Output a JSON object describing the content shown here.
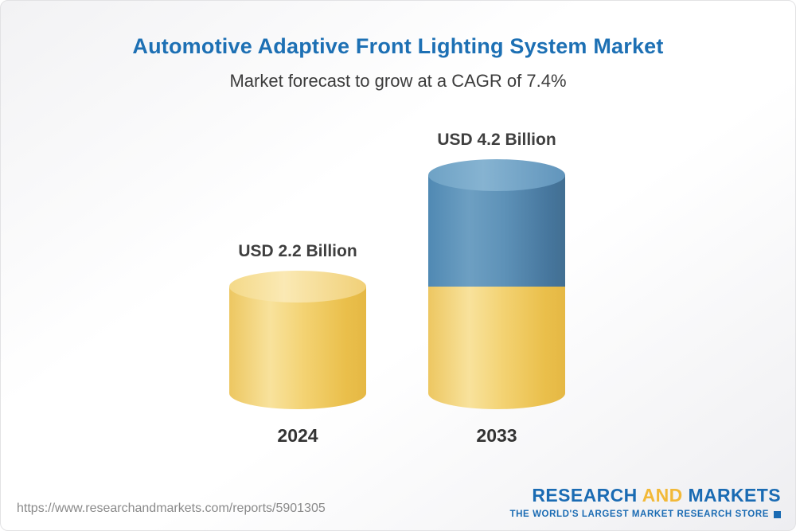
{
  "chart_data": {
    "type": "bar",
    "variant": "3d-cylinder",
    "title": "Automotive Adaptive Front Lighting System Market",
    "subtitle": "Market forecast to grow at a CAGR of 7.4%",
    "cagr": "7.4%",
    "unit": "USD Billion",
    "categories": [
      "2024",
      "2033"
    ],
    "values": [
      2.2,
      4.2
    ],
    "value_labels": [
      "USD 2.2 Billion",
      "USD 4.2 Billion"
    ],
    "series": [
      {
        "name": "2024 base value",
        "color": "#f0c95f"
      },
      {
        "name": "2033 incremental growth",
        "color": "#5b8fb6"
      }
    ],
    "legend": "off",
    "grid": "off",
    "ylim": [
      0,
      4.5
    ]
  },
  "footer": {
    "url": "https://www.researchandmarkets.com/reports/5901305",
    "logo": {
      "part1": "RESEARCH",
      "part2": "AND",
      "part3": "MARKETS",
      "tagline": "THE WORLD'S LARGEST MARKET RESEARCH STORE"
    }
  },
  "colors": {
    "title_blue": "#1d70b4",
    "bar_yellow": "#f0c95f",
    "bar_blue": "#5b8fb6",
    "logo_blue": "#1a6bb3",
    "logo_gold": "#f2b938"
  }
}
